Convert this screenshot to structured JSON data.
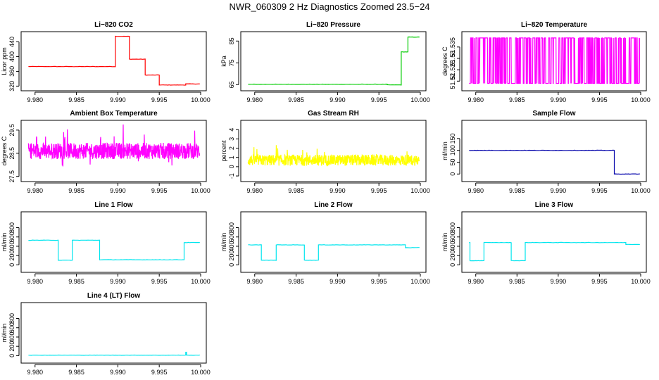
{
  "page": {
    "title": "NWR_060309  2 Hz Diagnostics Zoomed 23.5−24"
  },
  "chart_data": [
    {
      "id": "co2",
      "type": "line",
      "title": "Li−820 CO2",
      "ylabel": "Licor ppm",
      "color": "#ff0000",
      "xlim": [
        9.979,
        10.0
      ],
      "xticks": [
        "9.980",
        "9.985",
        "9.990",
        "9.995",
        "10.000"
      ],
      "ylim": [
        315,
        460
      ],
      "yticks": [
        320,
        360,
        400,
        440
      ],
      "segments": [
        {
          "x0": 9.9792,
          "x1": 9.9897,
          "y": 373
        },
        {
          "x0": 9.9897,
          "x1": 9.9914,
          "y": 455
        },
        {
          "x0": 9.9914,
          "x1": 9.9933,
          "y": 393
        },
        {
          "x0": 9.9933,
          "x1": 9.995,
          "y": 350
        },
        {
          "x0": 9.995,
          "x1": 9.9982,
          "y": 323
        },
        {
          "x0": 9.9982,
          "x1": 9.9999,
          "y": 326
        }
      ]
    },
    {
      "id": "pressure",
      "type": "line",
      "title": "Li−820 Pressure",
      "ylabel": "kPa",
      "color": "#00cc00",
      "xlim": [
        9.979,
        10.0
      ],
      "xticks": [
        "9.980",
        "9.985",
        "9.990",
        "9.995",
        "10.000"
      ],
      "ylim": [
        63.5,
        88
      ],
      "yticks": [
        65,
        75,
        85
      ],
      "segments": [
        {
          "x0": 9.9792,
          "x1": 9.996,
          "y": 65.2
        },
        {
          "x0": 9.996,
          "x1": 9.9977,
          "y": 64.9
        },
        {
          "x0": 9.9977,
          "x1": 9.9985,
          "y": 80
        },
        {
          "x0": 9.9985,
          "x1": 9.9999,
          "y": 86.8
        }
      ]
    },
    {
      "id": "licor-temp",
      "type": "line",
      "title": "Li−820 Temperature",
      "ylabel": "degrees C",
      "color": "#ff00ff",
      "xlim": [
        9.979,
        10.0
      ],
      "xticks": [
        "9.980",
        "9.985",
        "9.990",
        "9.995",
        "10.000"
      ],
      "ylim": [
        51.517,
        51.5405
      ],
      "yticks": [
        51.52,
        51.525,
        51.53,
        51.535
      ],
      "low": 51.519,
      "high": 51.539
    },
    {
      "id": "ambient-temp",
      "type": "line",
      "title": "Ambient Box Temperature",
      "ylabel": "degrees C",
      "color": "#ff00ff",
      "xlim": [
        9.979,
        10.0
      ],
      "xticks": [
        "9.980",
        "9.985",
        "9.990",
        "9.995",
        "10.000"
      ],
      "ylim": [
        27.4,
        29.8
      ],
      "yticks": [
        27.5,
        28.5,
        29.5
      ],
      "mean": 28.6,
      "spread": 0.35
    },
    {
      "id": "gas-rh",
      "type": "line",
      "title": "Gas Stream RH",
      "ylabel": "percent",
      "color": "#ffff00",
      "xlim": [
        9.979,
        10.0
      ],
      "xticks": [
        "9.980",
        "9.985",
        "9.990",
        "9.995",
        "10.000"
      ],
      "ylim": [
        -1.3,
        4.7
      ],
      "yticks": [
        -1,
        0,
        1,
        2,
        3,
        4
      ],
      "mean": 0.7,
      "spread": 0.6
    },
    {
      "id": "sample-flow",
      "type": "line",
      "title": "Sample Flow",
      "ylabel": "ml/min",
      "color": "#0000aa",
      "xlim": [
        9.979,
        10.0
      ],
      "xticks": [
        "9.980",
        "9.985",
        "9.990",
        "9.995",
        "10.000"
      ],
      "ylim": [
        -20,
        215
      ],
      "yticks": [
        0,
        50,
        100,
        150
      ],
      "segments": [
        {
          "x0": 9.9792,
          "x1": 9.9968,
          "y": 100
        },
        {
          "x0": 9.9968,
          "x1": 9.9999,
          "y": 0
        }
      ]
    },
    {
      "id": "line1-flow",
      "type": "line",
      "title": "Line 1 Flow",
      "ylabel": "ml/min",
      "color": "#00e5ee",
      "xlim": [
        9.979,
        10.0
      ],
      "xticks": [
        "9.980",
        "9.985",
        "9.990",
        "9.995",
        "10.000"
      ],
      "ylim": [
        -100,
        1080
      ],
      "yticks": [
        0,
        200,
        400,
        600,
        800
      ],
      "segments": [
        {
          "x0": 9.9792,
          "x1": 9.9828,
          "y": 530
        },
        {
          "x0": 9.9828,
          "x1": 9.9845,
          "y": 100
        },
        {
          "x0": 9.9845,
          "x1": 9.9878,
          "y": 530
        },
        {
          "x0": 9.9878,
          "x1": 9.998,
          "y": 110
        },
        {
          "x0": 9.998,
          "x1": 9.9999,
          "y": 480
        }
      ]
    },
    {
      "id": "line2-flow",
      "type": "line",
      "title": "Line 2 Flow",
      "ylabel": "ml/min",
      "color": "#00e5ee",
      "xlim": [
        9.979,
        10.0
      ],
      "xticks": [
        "9.980",
        "9.985",
        "9.990",
        "9.995",
        "10.000"
      ],
      "ylim": [
        -100,
        1080
      ],
      "yticks": [
        0,
        200,
        400,
        600,
        800
      ],
      "segments": [
        {
          "x0": 9.9792,
          "x1": 9.9808,
          "y": 430
        },
        {
          "x0": 9.9808,
          "x1": 9.9826,
          "y": 100
        },
        {
          "x0": 9.9826,
          "x1": 9.986,
          "y": 430
        },
        {
          "x0": 9.986,
          "x1": 9.9877,
          "y": 100
        },
        {
          "x0": 9.9877,
          "x1": 9.9982,
          "y": 430
        },
        {
          "x0": 9.9982,
          "x1": 9.9999,
          "y": 370
        }
      ]
    },
    {
      "id": "line3-flow",
      "type": "line",
      "title": "Line 3 Flow",
      "ylabel": "ml/min",
      "color": "#00e5ee",
      "xlim": [
        9.979,
        10.0
      ],
      "xticks": [
        "9.980",
        "9.985",
        "9.990",
        "9.995",
        "10.000"
      ],
      "ylim": [
        -100,
        1080
      ],
      "yticks": [
        0,
        200,
        400,
        600,
        800
      ],
      "segments": [
        {
          "x0": 9.9792,
          "x1": 9.9793,
          "y": 480
        },
        {
          "x0": 9.9793,
          "x1": 9.981,
          "y": 90
        },
        {
          "x0": 9.981,
          "x1": 9.9843,
          "y": 480
        },
        {
          "x0": 9.9843,
          "x1": 9.986,
          "y": 90
        },
        {
          "x0": 9.986,
          "x1": 9.9982,
          "y": 480
        },
        {
          "x0": 9.9982,
          "x1": 9.9999,
          "y": 440
        }
      ]
    },
    {
      "id": "line4-flow",
      "type": "line",
      "title": "Line 4 (LT) Flow",
      "ylabel": "ml/min",
      "color": "#00e5ee",
      "xlim": [
        9.979,
        10.0
      ],
      "xticks": [
        "9.980",
        "9.985",
        "9.990",
        "9.995",
        "10.000"
      ],
      "ylim": [
        -100,
        1080
      ],
      "yticks": [
        0,
        200,
        400,
        600,
        800
      ],
      "segments": [
        {
          "x0": 9.9792,
          "x1": 9.9982,
          "y": 10
        },
        {
          "x0": 9.9982,
          "x1": 9.9983,
          "y": 70
        },
        {
          "x0": 9.9983,
          "x1": 9.9999,
          "y": 10
        }
      ]
    }
  ]
}
